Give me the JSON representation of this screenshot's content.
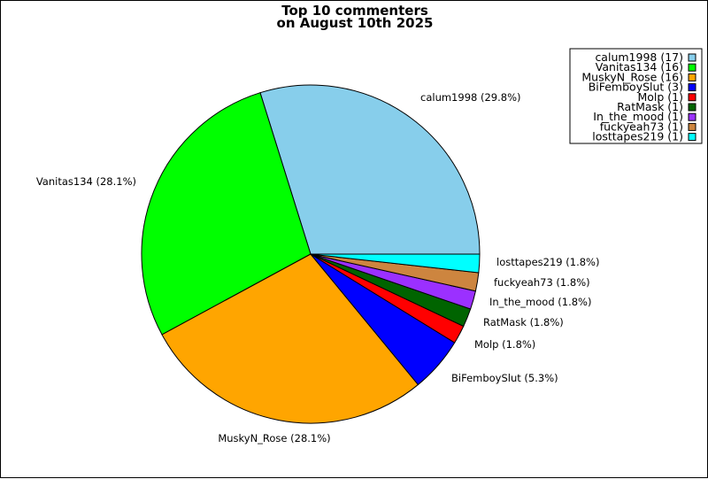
{
  "chart_data": {
    "type": "pie",
    "title": [
      "Top 10 commenters",
      "on August 10th 2025"
    ],
    "legend_position": "top-right",
    "slices": [
      {
        "name": "calum1998",
        "count": 17,
        "percent": 29.8,
        "color": "#87CEEB",
        "label": "calum1998 (29.8%)",
        "legend": "calum1998 (17)"
      },
      {
        "name": "Vanitas134",
        "count": 16,
        "percent": 28.1,
        "color": "#00FF00",
        "label": "Vanitas134 (28.1%)",
        "legend": "Vanitas134 (16)"
      },
      {
        "name": "MuskyN_Rose",
        "count": 16,
        "percent": 28.1,
        "color": "#FFA500",
        "label": "MuskyN_Rose (28.1%)",
        "legend": "MuskyN_Rose (16)"
      },
      {
        "name": "BiFemboySlut",
        "count": 3,
        "percent": 5.3,
        "color": "#0000FF",
        "label": "BiFemboySlut (5.3%)",
        "legend": "BiFemboySlut (3)"
      },
      {
        "name": "Molp",
        "count": 1,
        "percent": 1.8,
        "color": "#FF0000",
        "label": "Molp (1.8%)",
        "legend": "Molp (1)"
      },
      {
        "name": "RatMask",
        "count": 1,
        "percent": 1.8,
        "color": "#006400",
        "label": "RatMask (1.8%)",
        "legend": "RatMask (1)"
      },
      {
        "name": "In_the_mood",
        "count": 1,
        "percent": 1.8,
        "color": "#9B30FF",
        "label": "In_the_mood (1.8%)",
        "legend": "In_the_mood (1)"
      },
      {
        "name": "fuckyeah73",
        "count": 1,
        "percent": 1.8,
        "color": "#CD853F",
        "label": "fuckyeah73 (1.8%)",
        "legend": "fuckyeah73 (1)"
      },
      {
        "name": "losttapes219",
        "count": 1,
        "percent": 1.8,
        "color": "#00FFFF",
        "label": "losttapes219 (1.8%)",
        "legend": "losttapes219 (1)"
      }
    ]
  }
}
